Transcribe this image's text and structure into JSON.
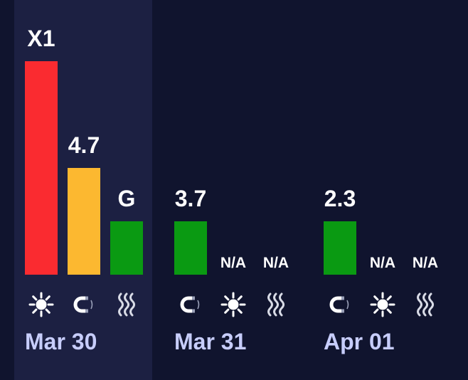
{
  "chart_data": {
    "type": "bar",
    "days": [
      {
        "date": "Mar 30",
        "highlighted": true,
        "bars": [
          {
            "icon": "sun-icon",
            "label": "X1",
            "value": 1.0,
            "color": "#fa2b30"
          },
          {
            "icon": "magnet-icon",
            "label": "4.7",
            "value": 0.5,
            "color": "#fcb830"
          },
          {
            "icon": "waves-icon",
            "label": "G",
            "value": 0.25,
            "color": "#0a9a12"
          }
        ]
      },
      {
        "date": "Mar 31",
        "highlighted": false,
        "bars": [
          {
            "icon": "magnet-icon",
            "label": "3.7",
            "value": 0.25,
            "color": "#0a9a12"
          },
          {
            "icon": "sun-icon",
            "label": "N/A",
            "value": 0,
            "color": "#0a9a12"
          },
          {
            "icon": "waves-icon",
            "label": "N/A",
            "value": 0,
            "color": "#0a9a12"
          }
        ]
      },
      {
        "date": "Apr 01",
        "highlighted": false,
        "bars": [
          {
            "icon": "magnet-icon",
            "label": "2.3",
            "value": 0.25,
            "color": "#0a9a12"
          },
          {
            "icon": "sun-icon",
            "label": "N/A",
            "value": 0,
            "color": "#0a9a12"
          },
          {
            "icon": "waves-icon",
            "label": "N/A",
            "value": 0,
            "color": "#0a9a12"
          }
        ]
      }
    ],
    "colors": {
      "background": "#10142e",
      "highlight": "#1c2042",
      "date_text": "#c7cdfb"
    }
  }
}
